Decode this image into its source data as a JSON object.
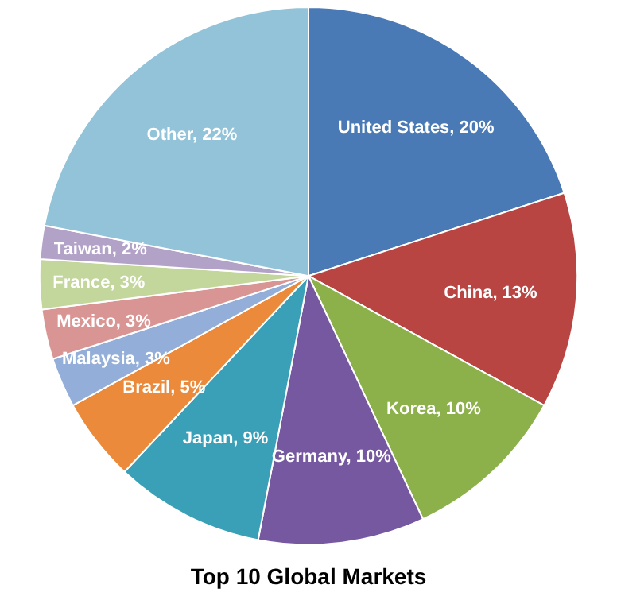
{
  "chart_data": {
    "type": "pie",
    "title": "Top 10 Global Markets",
    "categories": [
      "United States",
      "China",
      "Korea",
      "Germany",
      "Japan",
      "Brazil",
      "Malaysia",
      "Mexico",
      "France",
      "Taiwan",
      "Other"
    ],
    "values": [
      20,
      13,
      10,
      10,
      9,
      5,
      3,
      3,
      3,
      2,
      22
    ],
    "colors": [
      "#4a7ab5",
      "#b84542",
      "#8cb04a",
      "#7558a0",
      "#3aa0b8",
      "#ea8a3a",
      "#93aed8",
      "#d99594",
      "#c3d69b",
      "#b3a2c7",
      "#93c3d8"
    ],
    "value_labels": [
      "20%",
      "13%",
      "10%",
      "10%",
      "9%",
      "5%",
      "3%",
      "3%",
      "3%",
      "2%",
      "22%"
    ],
    "legend": false
  }
}
